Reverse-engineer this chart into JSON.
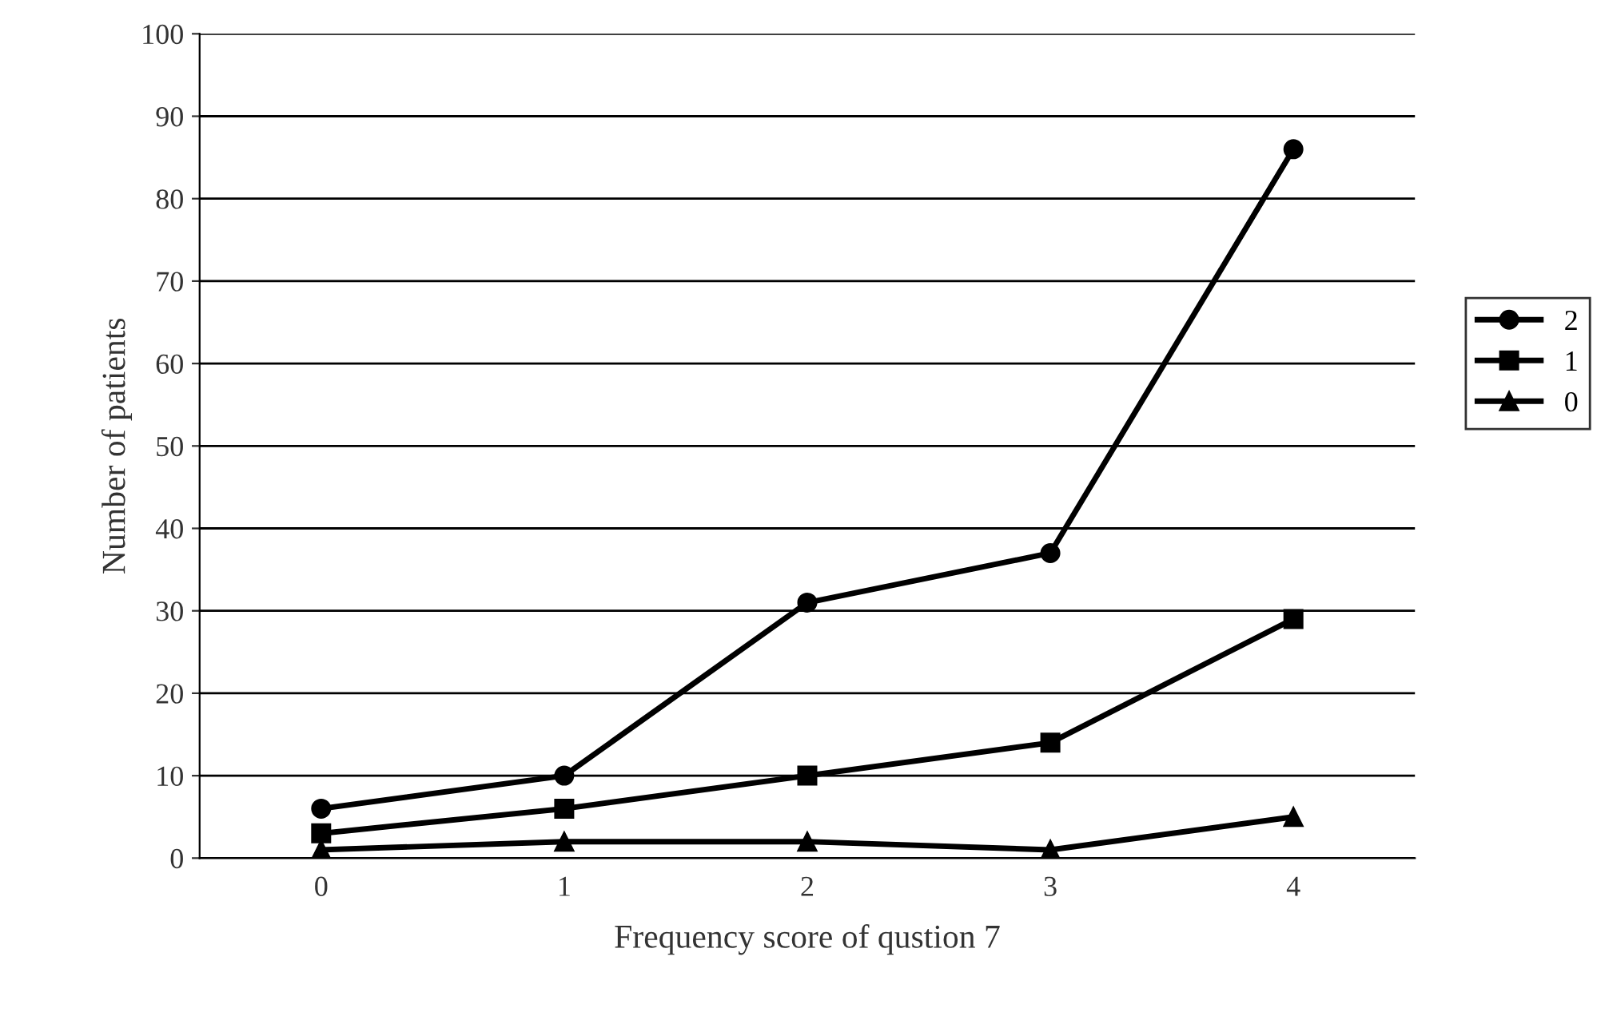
{
  "chart_data": {
    "type": "line",
    "xlabel": "Frequency score of qustion 7",
    "ylabel": "Number of patients",
    "categories": [
      "0",
      "1",
      "2",
      "3",
      "4"
    ],
    "series": [
      {
        "name": "2",
        "color": "#000000",
        "marker": "circle",
        "values": [
          6,
          10,
          31,
          37,
          86
        ]
      },
      {
        "name": "1",
        "color": "#000000",
        "marker": "square",
        "values": [
          3,
          6,
          10,
          14,
          29
        ]
      },
      {
        "name": "0",
        "color": "#000000",
        "marker": "triangle",
        "values": [
          1,
          2,
          2,
          1,
          5
        ]
      }
    ],
    "ylim": [
      0,
      100
    ],
    "yticks": [
      0,
      10,
      20,
      30,
      40,
      50,
      60,
      70,
      80,
      90,
      100
    ],
    "grid": "y",
    "legend": "right",
    "line_style": "solid"
  }
}
